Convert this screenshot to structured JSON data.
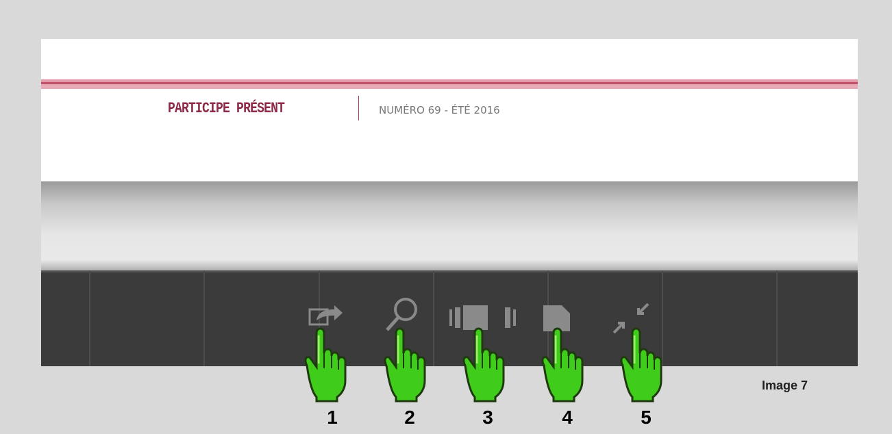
{
  "header": {
    "brand": "PARTICIPE PRÉSENT",
    "issue": "NUMÉRO 69 - ÉTÉ 2016"
  },
  "steps": [
    "1",
    "2",
    "3",
    "4",
    "5"
  ],
  "caption": "Image 7"
}
